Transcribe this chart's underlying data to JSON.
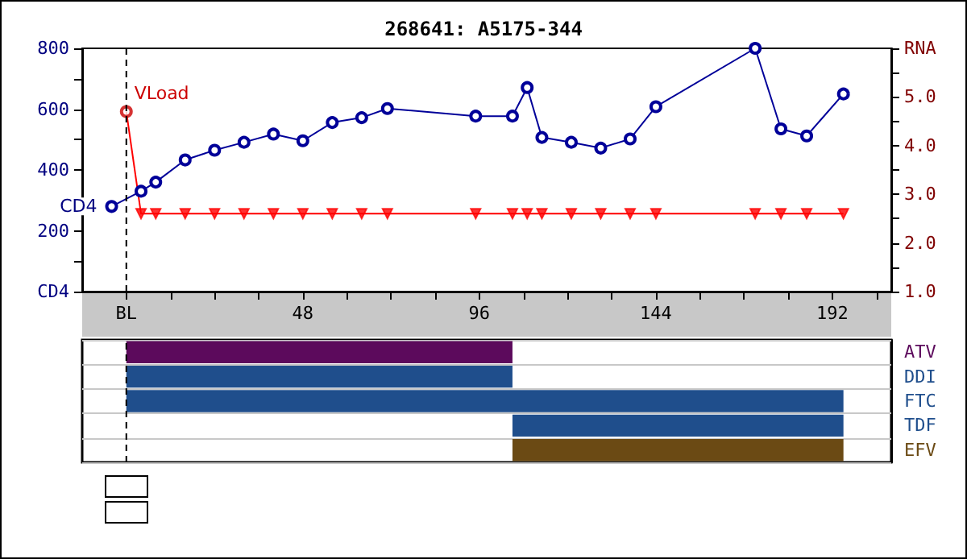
{
  "chart_data": [
    {
      "type": "line",
      "title": "268641: A5175-344",
      "xlim": [
        -12,
        208
      ],
      "xticks": [
        {
          "value": 0,
          "label": "BL"
        },
        {
          "value": 12,
          "label": null
        },
        {
          "value": 24,
          "label": null
        },
        {
          "value": 36,
          "label": null
        },
        48,
        {
          "value": 60,
          "label": null
        },
        {
          "value": 72,
          "label": null
        },
        {
          "value": 84,
          "label": null
        },
        96,
        {
          "value": 108,
          "label": null
        },
        {
          "value": 120,
          "label": null
        },
        {
          "value": 132,
          "label": null
        },
        144,
        {
          "value": 156,
          "label": null
        },
        {
          "value": 168,
          "label": null
        },
        {
          "value": 180,
          "label": null
        },
        192,
        {
          "value": 204,
          "label": null
        }
      ],
      "ylim": [
        0,
        800
      ],
      "yticks": [
        {
          "value": 0,
          "label": "CD4"
        },
        {
          "value": 100,
          "label": null
        },
        200,
        {
          "value": 300,
          "label": null
        },
        400,
        {
          "value": 500,
          "label": null
        },
        600,
        {
          "value": 700,
          "label": null
        },
        800
      ],
      "y2lim": [
        1,
        6
      ],
      "y2ticks": [
        {
          "value": 1,
          "label": "1.0"
        },
        {
          "value": 1.5,
          "label": null
        },
        {
          "value": 2,
          "label": "2.0"
        },
        {
          "value": 2.5,
          "label": null
        },
        {
          "value": 3,
          "label": "3.0"
        },
        {
          "value": 3.5,
          "label": null
        },
        {
          "value": 4,
          "label": "4.0"
        },
        {
          "value": 4.5,
          "label": null
        },
        {
          "value": 5,
          "label": "5.0"
        },
        {
          "value": 5.5,
          "label": null
        },
        {
          "value": 6,
          "label": "RNA"
        }
      ],
      "series": [
        {
          "name": "CD4",
          "type": "line",
          "color": "#000099",
          "marker": "circle",
          "x": [
            -4,
            4,
            8,
            16,
            24,
            32,
            40,
            48,
            56,
            64,
            71,
            95,
            105,
            109,
            113,
            121,
            129,
            137,
            144,
            171,
            178,
            185,
            195
          ],
          "values": [
            280,
            330,
            360,
            433,
            465,
            491,
            518,
            496,
            556,
            572,
            602,
            577,
            577,
            671,
            507,
            491,
            472,
            502,
            608,
            800,
            535,
            512,
            650
          ]
        },
        {
          "name": "VLoad",
          "type": "line",
          "axis": "y2",
          "color": "#ff0000",
          "marker": "none",
          "x": [
            0,
            4,
            8,
            16,
            24,
            32,
            40,
            48,
            56,
            64,
            71,
            95,
            105,
            109,
            113,
            121,
            129,
            137,
            144,
            171,
            178,
            185,
            195
          ],
          "values": [
            4.7,
            2.6,
            2.6,
            2.6,
            2.6,
            2.6,
            2.6,
            2.6,
            2.6,
            2.6,
            2.6,
            2.6,
            2.6,
            2.6,
            2.6,
            2.6,
            2.6,
            2.6,
            2.6,
            2.6,
            2.6,
            2.6,
            2.6
          ]
        },
        {
          "type": "scatter",
          "axis": "y2",
          "color": "#ff0000",
          "marker": "triangle",
          "x": [
            4,
            8,
            16,
            24,
            32,
            40,
            48,
            56,
            64,
            71,
            95,
            105,
            109,
            113,
            121,
            129,
            137,
            144,
            171,
            178,
            185,
            195
          ],
          "values": [
            2.6,
            2.6,
            2.6,
            2.6,
            2.6,
            2.6,
            2.6,
            2.6,
            2.6,
            2.6,
            2.6,
            2.6,
            2.6,
            2.6,
            2.6,
            2.6,
            2.6,
            2.6,
            2.6,
            2.6,
            2.6,
            2.6
          ]
        },
        {
          "type": "scatter",
          "axis": "y2",
          "color": "#cc0000",
          "marker": "circle",
          "x": [
            0
          ],
          "values": [
            4.7
          ]
        }
      ],
      "ref_lines": [
        {
          "axis": "x",
          "value": 0,
          "color": "#000000",
          "line_style": "dashed"
        }
      ]
    },
    {
      "type": "bar",
      "orientation": "horizontal",
      "categories": [
        "ATV",
        "DDI",
        "FTC",
        "TDF",
        "EFV"
      ],
      "base": [
        0,
        0,
        0,
        105,
        105
      ],
      "values": [
        105,
        105,
        195,
        90,
        90
      ],
      "colors": [
        "#5c0a5c",
        "#1f4e8c",
        "#1f4e8c",
        "#1f4e8c",
        "#6b4a14"
      ],
      "xlim": [
        -12,
        208
      ],
      "grid": "y",
      "tick_labels": "y",
      "ref_lines": [
        {
          "axis": "x",
          "value": 0,
          "color": "#000000",
          "line_style": "dashed"
        }
      ]
    }
  ]
}
